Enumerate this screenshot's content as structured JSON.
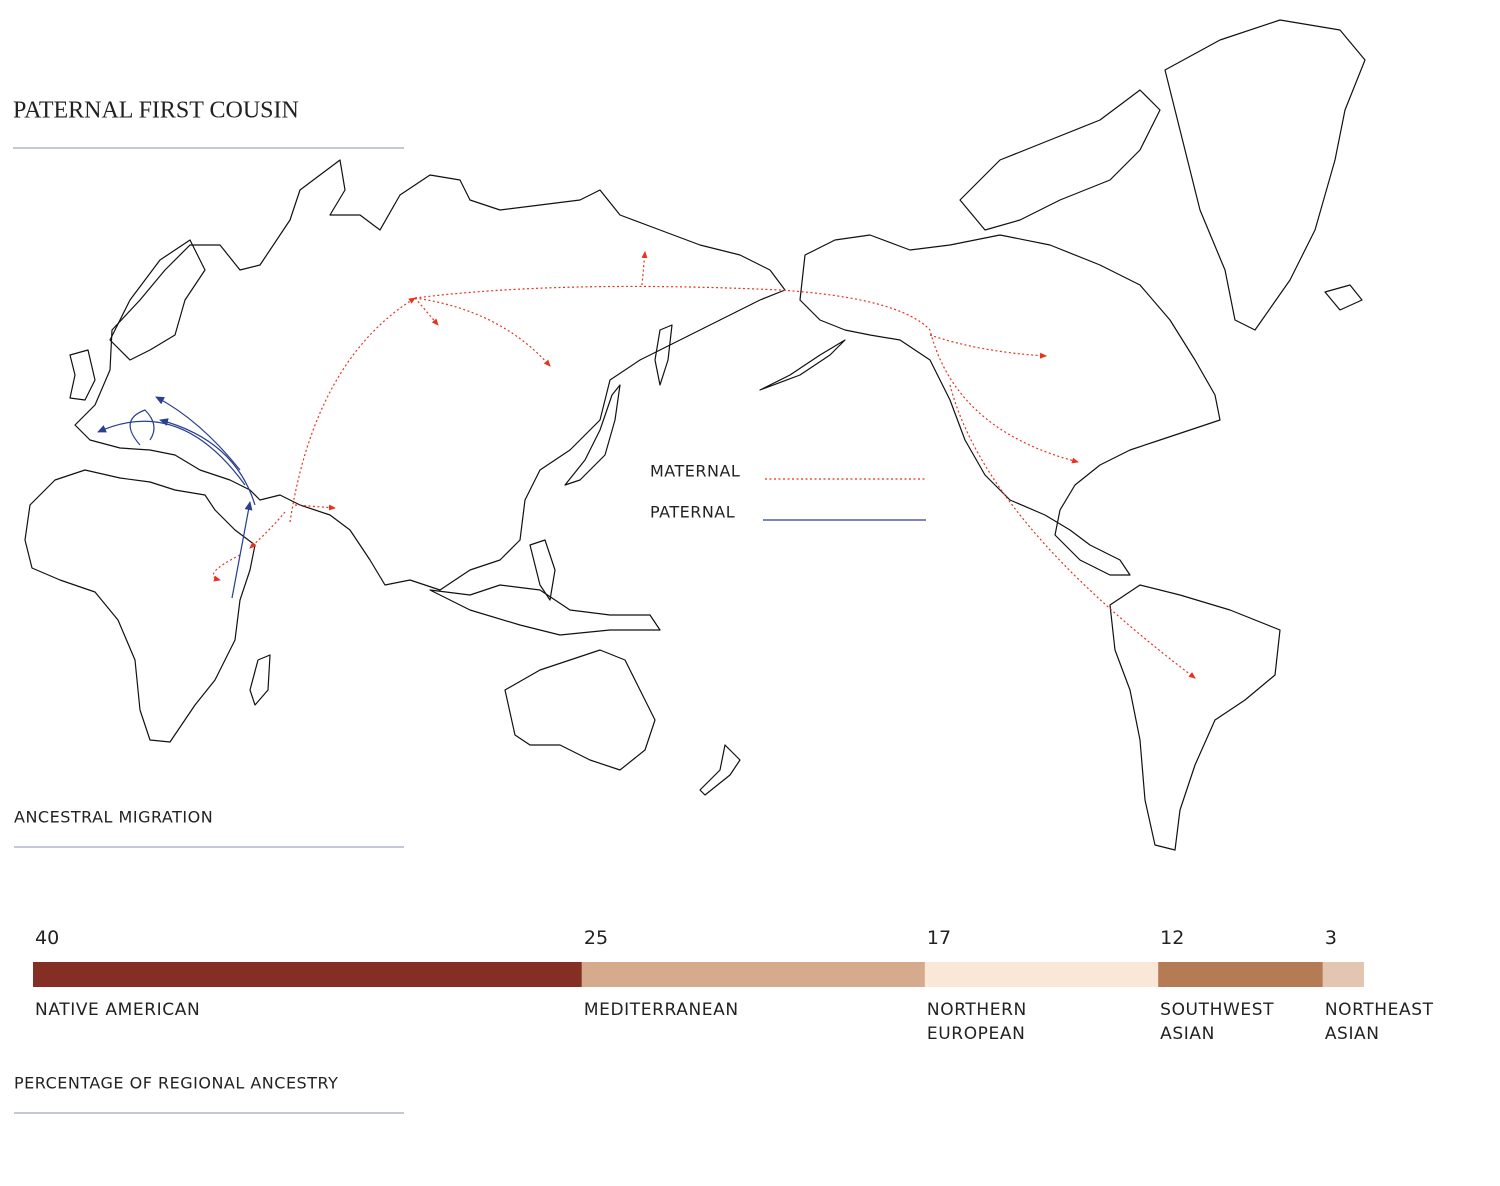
{
  "title": "PATERNAL FIRST COUSIN",
  "map": {
    "title": "ANCESTRAL MIGRATION",
    "legend": [
      {
        "label": "MATERNAL",
        "color": "#e8321e"
      },
      {
        "label": "PATERNAL",
        "color": "#2a3f8f"
      }
    ]
  },
  "chart_data": {
    "type": "stacked-bar",
    "title": "PERCENTAGE OF REGIONAL ANCESTRY",
    "series": [
      {
        "name": "NATIVE AMERICAN",
        "color": "#852f24",
        "values": [
          40
        ]
      },
      {
        "name": "MEDITERRANEAN",
        "color": "#d6aa8c",
        "values": [
          25
        ]
      },
      {
        "name": "NORTHERN EUROPEAN",
        "color": "#f9e8d7",
        "values": [
          17
        ]
      },
      {
        "name": "SOUTHWEST ASIAN",
        "color": "#b47b54",
        "values": [
          12
        ]
      },
      {
        "name": "NORTHEAST ASIAN",
        "color": "#e2c6b2",
        "values": [
          3
        ]
      }
    ]
  }
}
